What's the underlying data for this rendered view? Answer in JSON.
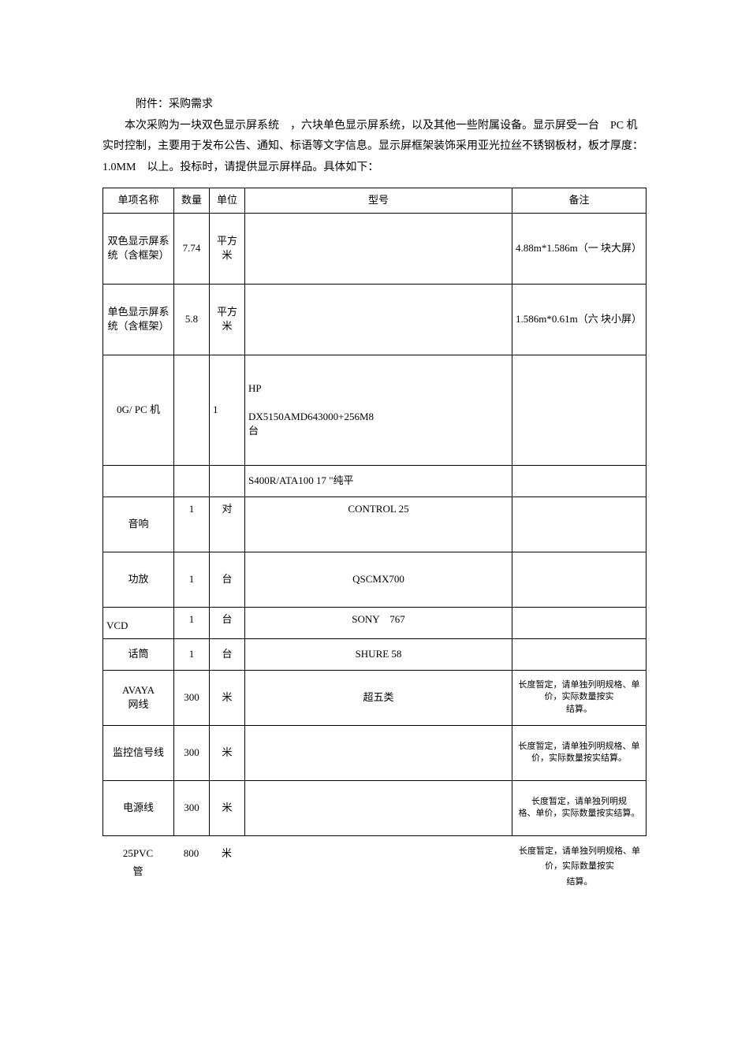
{
  "intro": {
    "title": "附件：采购需求",
    "body": "本次采购为一块双色显示屏系统　，六块单色显示屏系统，以及其他一些附属设备。显示屏受一台　PC 机实时控制，主要用于发布公告、通知、标语等文字信息。显示屏框架装饰采用亚光拉丝不锈钢板材，板才厚度：　1.0MM　以上。投标时，请提供显示屏样品。具体如下："
  },
  "table": {
    "headers": {
      "name": "单项名称",
      "qty": "数量",
      "unit": "单位",
      "model": "型号",
      "remark": "备注"
    },
    "rows": [
      {
        "name": "双色显示屏系统（含框架）",
        "qty": "7.74",
        "unit": "平方米",
        "model": "",
        "remark": "4.88m*1.586m（一\n块大屏）"
      },
      {
        "name": "单色显示屏系统（含框架）",
        "qty": "5.8",
        "unit": "平方米",
        "model": "",
        "remark": "1.586m*0.61m（六\n块小屏）"
      },
      {
        "name": "0G/ PC 机",
        "qty": "",
        "unit": "1",
        "model": "HP\n\nDX5150AMD643000+256M8\n台",
        "remark": ""
      },
      {
        "name": "",
        "qty": "",
        "unit": "",
        "model": "S400R/ATA100 17 \"纯平",
        "remark": ""
      },
      {
        "name": "音响",
        "qty": "1",
        "unit": "对",
        "model": "CONTROL 25",
        "remark": ""
      },
      {
        "name": "功放",
        "qty": "1",
        "unit": "台",
        "model": "QSCMX700",
        "remark": ""
      },
      {
        "name": "VCD",
        "qty": "1",
        "unit": "台",
        "model": "SONY　767",
        "remark": ""
      },
      {
        "name": "话筒",
        "qty": "1",
        "unit": "台",
        "model": "SHURE 58",
        "remark": ""
      },
      {
        "name": "AVAYA\n网线",
        "qty": "300",
        "unit": "米",
        "model": "超五类",
        "remark": "长度暂定，请单独列明规格、单价，实际数量按实\n结算。"
      },
      {
        "name": "监控信号线",
        "qty": "300",
        "unit": "米",
        "model": "",
        "remark": "长度暂定，请单独列明规格、单价，实际数量按实结算。"
      },
      {
        "name": "电源线",
        "qty": "300",
        "unit": "米",
        "model": "",
        "remark": "长度暂定，请单独列明规\n格、单价，实际数量按实结算。"
      }
    ]
  },
  "below": {
    "name": "25PVC\n管",
    "qty": "800",
    "unit": "米",
    "remark": "长度暂定，请单独列明规格、单价，实际数量按实\n结算。"
  }
}
